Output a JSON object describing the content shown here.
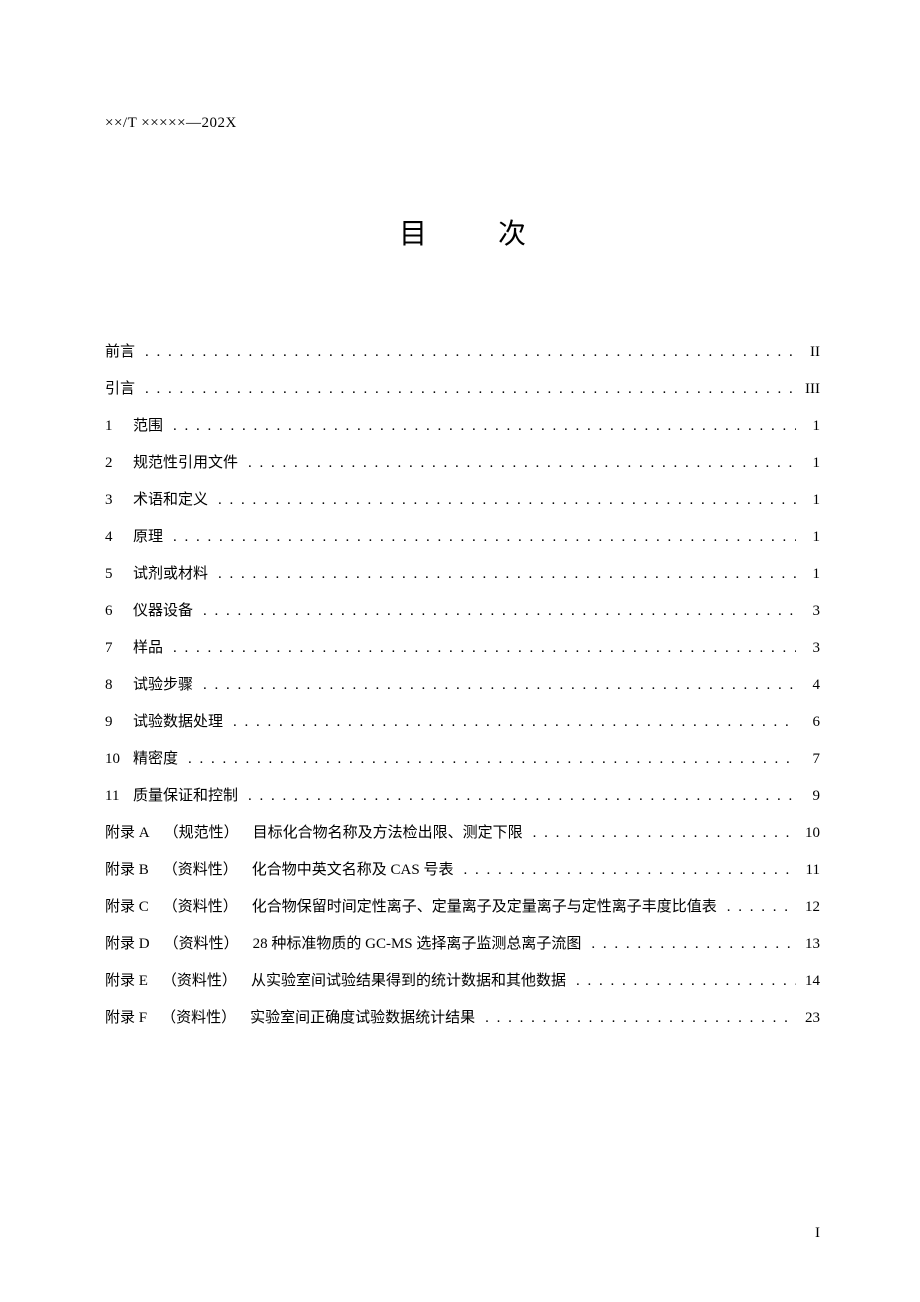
{
  "doc": {
    "header_code": "××/T ×××××—202X",
    "title": "目  次",
    "page_number": "I"
  },
  "toc": [
    {
      "label": "前言",
      "text": "",
      "page": "II"
    },
    {
      "label": "引言",
      "text": "",
      "page": "III"
    },
    {
      "label": "1",
      "text": "范围",
      "page": "1"
    },
    {
      "label": "2",
      "text": "规范性引用文件",
      "page": "1"
    },
    {
      "label": "3",
      "text": "术语和定义",
      "page": "1"
    },
    {
      "label": "4",
      "text": "原理",
      "page": "1"
    },
    {
      "label": "5",
      "text": "试剂或材料",
      "page": "1"
    },
    {
      "label": "6",
      "text": "仪器设备",
      "page": "3"
    },
    {
      "label": "7",
      "text": "样品",
      "page": "3"
    },
    {
      "label": "8",
      "text": "试验步骤",
      "page": "4"
    },
    {
      "label": "9",
      "text": "试验数据处理",
      "page": "6"
    },
    {
      "label": "10",
      "text": "精密度",
      "page": "7"
    },
    {
      "label": "11",
      "text": "质量保证和控制",
      "page": "9"
    },
    {
      "label": "附录 A",
      "type": "（规范性）",
      "text": "目标化合物名称及方法检出限、测定下限",
      "page": "10"
    },
    {
      "label": "附录 B",
      "type": "（资料性）",
      "text": "化合物中英文名称及 CAS 号表",
      "page": "11"
    },
    {
      "label": "附录 C",
      "type": "（资料性）",
      "text": "化合物保留时间定性离子、定量离子及定量离子与定性离子丰度比值表",
      "page": "12"
    },
    {
      "label": "附录 D",
      "type": "（资料性）",
      "text": "28 种标准物质的 GC-MS 选择离子监测总离子流图",
      "page": "13"
    },
    {
      "label": "附录 E",
      "type": "（资料性）",
      "text": "从实验室间试验结果得到的统计数据和其他数据",
      "page": "14"
    },
    {
      "label": "附录 F",
      "type": "（资料性）",
      "text": "实验室间正确度试验数据统计结果",
      "page": "23"
    }
  ]
}
